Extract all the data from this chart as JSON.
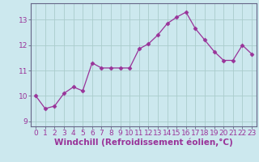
{
  "x": [
    0,
    1,
    2,
    3,
    4,
    5,
    6,
    7,
    8,
    9,
    10,
    11,
    12,
    13,
    14,
    15,
    16,
    17,
    18,
    19,
    20,
    21,
    22,
    23
  ],
  "y": [
    10.0,
    9.5,
    9.6,
    10.1,
    10.35,
    10.2,
    11.3,
    11.1,
    11.1,
    11.1,
    11.1,
    11.85,
    12.05,
    12.4,
    12.85,
    13.1,
    13.3,
    12.65,
    12.2,
    11.75,
    11.4,
    11.4,
    12.0,
    11.65
  ],
  "line_color": "#993399",
  "marker": "D",
  "markersize": 2.5,
  "linewidth": 0.9,
  "background_color": "#cce8ee",
  "grid_color": "#aacccc",
  "xlabel": "Windchill (Refroidissement éolien,°C)",
  "xlabel_fontsize": 7.5,
  "xtick_labels": [
    "0",
    "1",
    "2",
    "3",
    "4",
    "5",
    "6",
    "7",
    "8",
    "9",
    "10",
    "11",
    "12",
    "13",
    "14",
    "15",
    "16",
    "17",
    "18",
    "19",
    "20",
    "21",
    "22",
    "23"
  ],
  "ytick_labels": [
    "9",
    "10",
    "11",
    "12",
    "13"
  ],
  "ytick_values": [
    9,
    10,
    11,
    12,
    13
  ],
  "ylim": [
    8.8,
    13.65
  ],
  "xlim": [
    -0.5,
    23.5
  ],
  "tick_color": "#993399",
  "tick_fontsize": 6.5,
  "spine_color": "#666688"
}
